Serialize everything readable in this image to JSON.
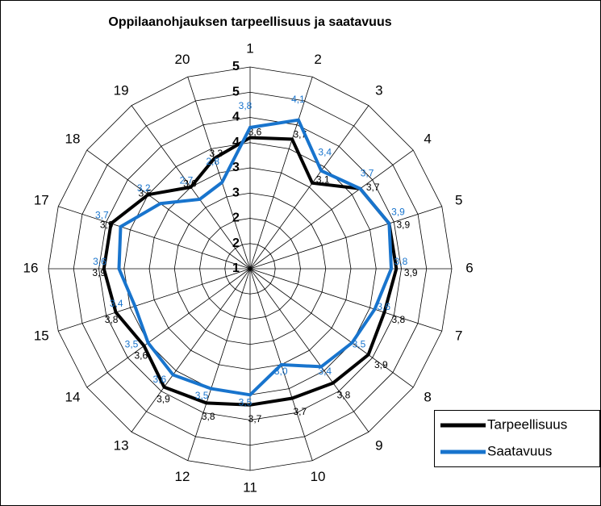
{
  "chart_data": {
    "type": "radar",
    "title": "Oppilaanohjauksen tarpeellisuus ja saatavuus",
    "categories": [
      "1",
      "2",
      "3",
      "4",
      "5",
      "6",
      "7",
      "8",
      "9",
      "10",
      "11",
      "12",
      "13",
      "14",
      "15",
      "16",
      "17",
      "18",
      "19",
      "20"
    ],
    "rlim": [
      1,
      5
    ],
    "rticks": [
      1,
      {
        "value": 1.5,
        "label": "2"
      },
      2,
      {
        "value": 2.5,
        "label": "3"
      },
      3,
      {
        "value": 3.5,
        "label": "4"
      },
      4,
      {
        "value": 4.5,
        "label": "5"
      },
      5
    ],
    "grid": true,
    "legend": "lower right",
    "series": [
      {
        "name": "Tarpeellisuus",
        "color": "#000000",
        "values": [
          3.6,
          3.7,
          3.1,
          3.7,
          3.9,
          3.9,
          3.8,
          3.9,
          3.8,
          3.7,
          3.7,
          3.8,
          3.9,
          3.6,
          3.8,
          3.9,
          3.9,
          3.5,
          3.0,
          3.3
        ],
        "value_labels": [
          "3,6",
          "3,7",
          "3,1",
          "3,7",
          "3,9",
          "3,9",
          "3,8",
          "3,9",
          "3,8",
          "3,7",
          "3,7",
          "3,8",
          "3,9",
          "3,6",
          "3,8",
          "3,9",
          "3,9",
          "3,5",
          "3,0",
          "3,3"
        ]
      },
      {
        "name": "Saatavuus",
        "color": "#1874cd",
        "values": [
          3.8,
          4.1,
          3.4,
          3.7,
          3.9,
          3.8,
          3.6,
          3.5,
          3.4,
          3.0,
          3.5,
          3.5,
          3.6,
          3.5,
          3.4,
          3.6,
          3.7,
          3.2,
          2.7,
          2.8
        ],
        "value_labels": [
          "3,8",
          "4,1",
          "3,4",
          "3,7",
          "3,9",
          "3,8",
          "3,6",
          "3,5",
          "3,4",
          "3,0",
          "3,5",
          "3,5",
          "3,6",
          "3,5",
          "3,4",
          "3,6",
          "3,7",
          "3,2",
          "2,7",
          "2,8"
        ]
      }
    ]
  }
}
